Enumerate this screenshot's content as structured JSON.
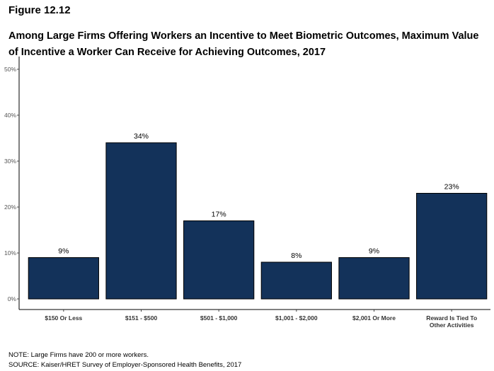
{
  "figure_label": "Figure 12.12",
  "title_lines": [
    "Among Large Firms Offering Workers an Incentive to Meet Biometric Outcomes, Maximum Value",
    "of Incentive a Worker Can Receive for Achieving Outcomes, 2017"
  ],
  "notes": {
    "note": "NOTE: Large Firms have 200 or more workers.",
    "source": "SOURCE: Kaiser/HRET Survey of Employer-Sponsored Health Benefits, 2017"
  },
  "chart_data": {
    "type": "bar",
    "title": "Among Large Firms Offering Workers an Incentive to Meet Biometric Outcomes, Maximum Value of Incentive a Worker Can Receive for Achieving Outcomes, 2017",
    "categories": [
      [
        "$150 Or Less"
      ],
      [
        "$151 - $500"
      ],
      [
        "$501 - $1,000"
      ],
      [
        "$1,001 - $2,000"
      ],
      [
        "$2,001 Or More"
      ],
      [
        "Reward Is Tied To",
        "Other Activities"
      ]
    ],
    "values": [
      9,
      34,
      17,
      8,
      9,
      23
    ],
    "data_labels": [
      "9%",
      "34%",
      "17%",
      "8%",
      "9%",
      "23%"
    ],
    "ylim": [
      0,
      50
    ],
    "yticks": [
      0,
      10,
      20,
      30,
      40,
      50
    ],
    "ytick_labels": [
      "0%",
      "10%",
      "20%",
      "30%",
      "40%",
      "50%"
    ],
    "xlabel": "",
    "ylabel": "",
    "grid": false,
    "bar_color": "#13325a"
  }
}
